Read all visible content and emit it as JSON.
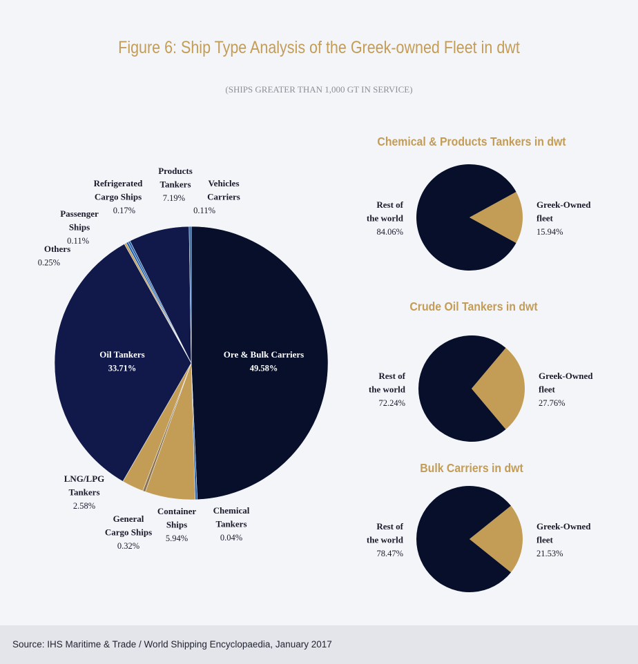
{
  "title": "Figure 6: Ship Type Analysis of the Greek-owned Fleet in dwt",
  "subtitle": "(SHIPS GREATER THAN 1,000 GT IN SERVICE)",
  "source": "Source: IHS Maritime & Trade / World Shipping Encyclopaedia, January 2017",
  "colors": {
    "dark_navy": "#070f2a",
    "navy": "#11194a",
    "gold": "#c39c56",
    "blue": "#2461a8",
    "title_gold": "#c39c56"
  },
  "chart_data": [
    {
      "type": "pie",
      "title": "",
      "slices": [
        {
          "name": "Ore & Bulk Carriers",
          "label_lines": [
            "Ore & Bulk Carriers"
          ],
          "value": 49.58,
          "value_label": "49.58%",
          "color": "#070f2a",
          "label_inside": true
        },
        {
          "name": "Chemical Tankers",
          "label_lines": [
            "Chemical",
            "Tankers"
          ],
          "value": 0.04,
          "value_label": "0.04%",
          "color": "#2461a8",
          "label_inside": false
        },
        {
          "name": "Container Ships",
          "label_lines": [
            "Container",
            "Ships"
          ],
          "value": 5.94,
          "value_label": "5.94%",
          "color": "#c39c56",
          "label_inside": false
        },
        {
          "name": "General Cargo Ships",
          "label_lines": [
            "General",
            "Cargo Ships"
          ],
          "value": 0.32,
          "value_label": "0.32%",
          "color": "#8a7550",
          "label_inside": false
        },
        {
          "name": "LNG/LPG Tankers",
          "label_lines": [
            "LNG/LPG",
            "Tankers"
          ],
          "value": 2.58,
          "value_label": "2.58%",
          "color": "#c39c56",
          "label_inside": false
        },
        {
          "name": "Oil Tankers",
          "label_lines": [
            "Oil Tankers"
          ],
          "value": 33.71,
          "value_label": "33.71%",
          "color": "#11194a",
          "label_inside": true
        },
        {
          "name": "Others",
          "label_lines": [
            "Others"
          ],
          "value": 0.25,
          "value_label": "0.25%",
          "color": "#c39c56",
          "label_inside": false
        },
        {
          "name": "Passenger Ships",
          "label_lines": [
            "Passenger",
            "Ships"
          ],
          "value": 0.11,
          "value_label": "0.11%",
          "color": "#2461a8",
          "label_inside": false
        },
        {
          "name": "Refrigerated Cargo Ships",
          "label_lines": [
            "Refrigerated",
            "Cargo Ships"
          ],
          "value": 0.17,
          "value_label": "0.17%",
          "color": "#2461a8",
          "label_inside": false
        },
        {
          "name": "Products Tankers",
          "label_lines": [
            "Products",
            "Tankers"
          ],
          "value": 7.19,
          "value_label": "7.19%",
          "color": "#11194a",
          "label_inside": false
        },
        {
          "name": "Vehicles Carriers",
          "label_lines": [
            "Vehicles",
            "Carriers"
          ],
          "value": 0.11,
          "value_label": "0.11%",
          "color": "#2461a8",
          "label_inside": false
        }
      ]
    },
    {
      "type": "pie",
      "title": "Chemical & Products Tankers in dwt",
      "slices": [
        {
          "name": "Greek-Owned fleet",
          "label_lines": [
            "Greek-Owned",
            "fleet"
          ],
          "value": 15.94,
          "value_label": "15.94%",
          "color": "#c39c56"
        },
        {
          "name": "Rest of the world",
          "label_lines": [
            "Rest of",
            "the world"
          ],
          "value": 84.06,
          "value_label": "84.06%",
          "color": "#070f2a"
        }
      ]
    },
    {
      "type": "pie",
      "title": "Crude Oil Tankers in dwt",
      "slices": [
        {
          "name": "Greek-Owned fleet",
          "label_lines": [
            "Greek-Owned",
            "fleet"
          ],
          "value": 27.76,
          "value_label": "27.76%",
          "color": "#c39c56"
        },
        {
          "name": "Rest of the world",
          "label_lines": [
            "Rest of",
            "the world"
          ],
          "value": 72.24,
          "value_label": "72.24%",
          "color": "#070f2a"
        }
      ]
    },
    {
      "type": "pie",
      "title": "Bulk Carriers in dwt",
      "slices": [
        {
          "name": "Greek-Owned fleet",
          "label_lines": [
            "Greek-Owned",
            "fleet"
          ],
          "value": 21.53,
          "value_label": "21.53%",
          "color": "#c39c56"
        },
        {
          "name": "Rest of the world",
          "label_lines": [
            "Rest of",
            "the world"
          ],
          "value": 78.47,
          "value_label": "78.47%",
          "color": "#070f2a"
        }
      ]
    }
  ]
}
